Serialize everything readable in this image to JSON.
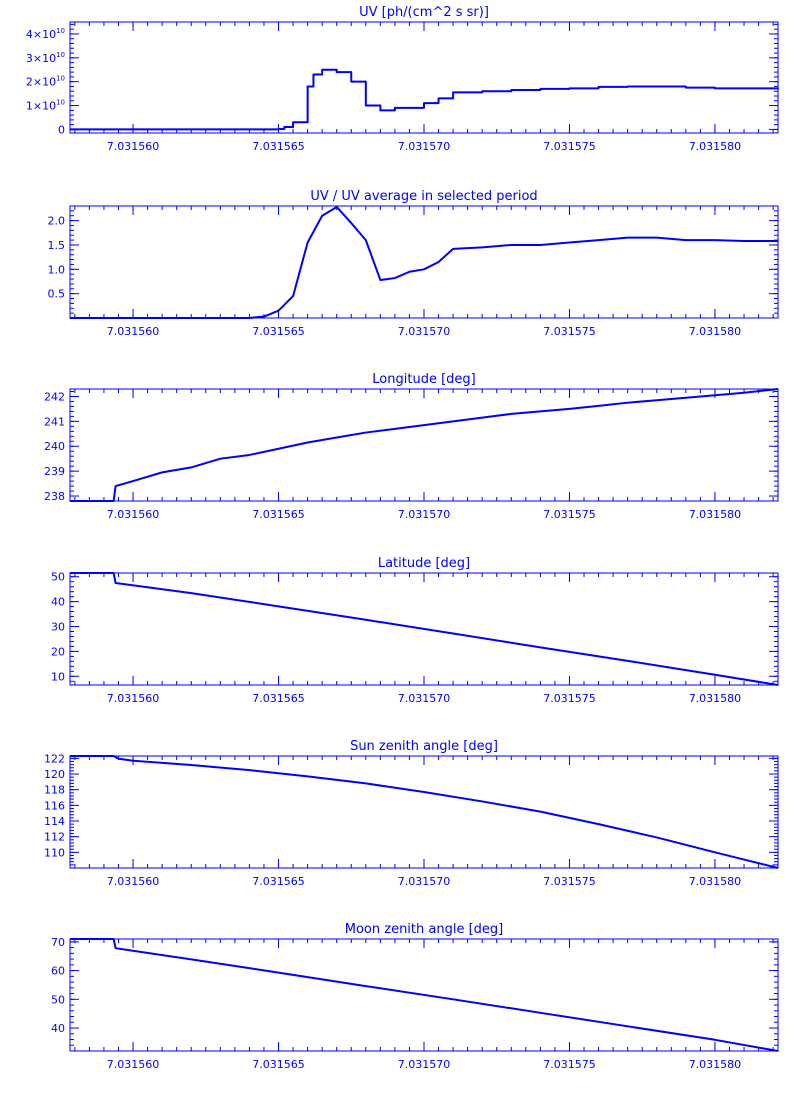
{
  "chart_data": [
    {
      "type": "line",
      "title": "UV [ph/(cm^2 s sr)]",
      "xlabel": "",
      "ylabel": "",
      "color": "#0000ff",
      "xlim": [
        7.031557833,
        7.031582167
      ],
      "ylim": [
        -1500000000.0,
        45000000000.0
      ],
      "xticks": [
        7.03156,
        7.031565,
        7.03157,
        7.031575,
        7.03158
      ],
      "xtick_labels": [
        "7.031560",
        "7.031565",
        "7.031570",
        "7.031575",
        "7.031580"
      ],
      "yticks": [
        0,
        10000000000.0,
        20000000000.0,
        30000000000.0,
        40000000000.0
      ],
      "ytick_labels": [
        {
          "mant": "0",
          "exp": ""
        },
        {
          "mant": "1×10",
          "exp": "10"
        },
        {
          "mant": "2×10",
          "exp": "10"
        },
        {
          "mant": "3×10",
          "exp": "10"
        },
        {
          "mant": "4×10",
          "exp": "10"
        }
      ],
      "step": true,
      "x": [
        7.031557833,
        7.031564,
        7.0315645,
        7.031565,
        7.0315652,
        7.0315655,
        7.031566,
        7.0315662,
        7.0315665,
        7.031567,
        7.0315675,
        7.031568,
        7.0315685,
        7.031569,
        7.03157,
        7.0315705,
        7.031571,
        7.031572,
        7.031573,
        7.031574,
        7.031575,
        7.031576,
        7.031577,
        7.031578,
        7.031579,
        7.03158,
        7.031581,
        7.031582167
      ],
      "y": [
        0,
        0,
        0,
        200000000.0,
        1000000000.0,
        3000000000.0,
        18000000000.0,
        23000000000.0,
        25000000000.0,
        24000000000.0,
        20000000000.0,
        10000000000.0,
        8000000000.0,
        9000000000.0,
        11000000000.0,
        13000000000.0,
        15500000000.0,
        16000000000.0,
        16500000000.0,
        17000000000.0,
        17200000000.0,
        17800000000.0,
        18000000000.0,
        18000000000.0,
        17500000000.0,
        17200000000.0,
        17200000000.0,
        17300000000.0
      ]
    },
    {
      "type": "line",
      "title": "UV / UV average in selected period",
      "xlabel": "",
      "ylabel": "",
      "color": "#0000ff",
      "xlim": [
        7.031557833,
        7.031582167
      ],
      "ylim": [
        0,
        2.3
      ],
      "xticks": [
        7.03156,
        7.031565,
        7.03157,
        7.031575,
        7.03158
      ],
      "xtick_labels": [
        "7.031560",
        "7.031565",
        "7.031570",
        "7.031575",
        "7.031580"
      ],
      "yticks": [
        0.5,
        1.0,
        1.5,
        2.0
      ],
      "ytick_labels": [
        {
          "mant": "0.5",
          "exp": ""
        },
        {
          "mant": "1.0",
          "exp": ""
        },
        {
          "mant": "1.5",
          "exp": ""
        },
        {
          "mant": "2.0",
          "exp": ""
        }
      ],
      "step": false,
      "x": [
        7.031557833,
        7.031564,
        7.0315645,
        7.031565,
        7.0315655,
        7.031566,
        7.0315665,
        7.031567,
        7.0315675,
        7.031568,
        7.0315685,
        7.031569,
        7.0315695,
        7.03157,
        7.0315705,
        7.031571,
        7.031572,
        7.031573,
        7.031574,
        7.031575,
        7.031576,
        7.031577,
        7.031578,
        7.031579,
        7.03158,
        7.031581,
        7.031582167
      ],
      "y": [
        0.0,
        0.0,
        0.03,
        0.15,
        0.45,
        1.55,
        2.1,
        2.28,
        1.95,
        1.6,
        0.78,
        0.82,
        0.95,
        1.0,
        1.15,
        1.42,
        1.45,
        1.5,
        1.5,
        1.55,
        1.6,
        1.65,
        1.65,
        1.6,
        1.6,
        1.58,
        1.58
      ]
    },
    {
      "type": "line",
      "title": "Longitude [deg]",
      "xlabel": "",
      "ylabel": "",
      "color": "#0000ff",
      "xlim": [
        7.031557833,
        7.031582167
      ],
      "ylim": [
        237.8,
        242.3
      ],
      "xticks": [
        7.03156,
        7.031565,
        7.03157,
        7.031575,
        7.03158
      ],
      "xtick_labels": [
        "7.031560",
        "7.031565",
        "7.031570",
        "7.031575",
        "7.031580"
      ],
      "yticks": [
        238,
        239,
        240,
        241,
        242
      ],
      "ytick_labels": [
        {
          "mant": "238",
          "exp": ""
        },
        {
          "mant": "239",
          "exp": ""
        },
        {
          "mant": "240",
          "exp": ""
        },
        {
          "mant": "241",
          "exp": ""
        },
        {
          "mant": "242",
          "exp": ""
        }
      ],
      "step": false,
      "x": [
        7.031557833,
        7.031559333,
        7.0315594,
        7.03156,
        7.031561,
        7.031562,
        7.031563,
        7.031564,
        7.031565,
        7.031566,
        7.031567,
        7.031568,
        7.031569,
        7.03157,
        7.031571,
        7.031572,
        7.031573,
        7.031574,
        7.031575,
        7.031576,
        7.031577,
        7.031578,
        7.031579,
        7.03158,
        7.031581,
        7.031582167
      ],
      "y": [
        237.8,
        237.8,
        238.4,
        238.6,
        238.95,
        239.15,
        239.5,
        239.65,
        239.9,
        240.15,
        240.35,
        240.55,
        240.7,
        240.85,
        241.0,
        241.15,
        241.3,
        241.4,
        241.5,
        241.62,
        241.75,
        241.85,
        241.95,
        242.05,
        242.15,
        242.3
      ]
    },
    {
      "type": "line",
      "title": "Latitude [deg]",
      "xlabel": "",
      "ylabel": "",
      "color": "#0000ff",
      "xlim": [
        7.031557833,
        7.031582167
      ],
      "ylim": [
        6.5,
        51.5
      ],
      "xticks": [
        7.03156,
        7.031565,
        7.03157,
        7.031575,
        7.03158
      ],
      "xtick_labels": [
        "7.031560",
        "7.031565",
        "7.031570",
        "7.031575",
        "7.031580"
      ],
      "yticks": [
        10,
        20,
        30,
        40,
        50
      ],
      "ytick_labels": [
        {
          "mant": "10",
          "exp": ""
        },
        {
          "mant": "20",
          "exp": ""
        },
        {
          "mant": "30",
          "exp": ""
        },
        {
          "mant": "40",
          "exp": ""
        },
        {
          "mant": "50",
          "exp": ""
        }
      ],
      "step": false,
      "x": [
        7.031557833,
        7.031559333,
        7.0315594,
        7.031562,
        7.031565,
        7.031568,
        7.031571,
        7.031574,
        7.031577,
        7.03158,
        7.031582167
      ],
      "y": [
        51.5,
        51.5,
        47.5,
        43.4,
        38.1,
        32.7,
        27.2,
        21.6,
        16.2,
        10.6,
        6.5
      ]
    },
    {
      "type": "line",
      "title": "Sun zenith angle [deg]",
      "xlabel": "",
      "ylabel": "",
      "color": "#0000ff",
      "xlim": [
        7.031557833,
        7.031582167
      ],
      "ylim": [
        108.0,
        122.3
      ],
      "xticks": [
        7.03156,
        7.031565,
        7.03157,
        7.031575,
        7.03158
      ],
      "xtick_labels": [
        "7.031560",
        "7.031565",
        "7.031570",
        "7.031575",
        "7.031580"
      ],
      "yticks": [
        110,
        112,
        114,
        116,
        118,
        120,
        122
      ],
      "ytick_labels": [
        {
          "mant": "110",
          "exp": ""
        },
        {
          "mant": "112",
          "exp": ""
        },
        {
          "mant": "114",
          "exp": ""
        },
        {
          "mant": "116",
          "exp": ""
        },
        {
          "mant": "118",
          "exp": ""
        },
        {
          "mant": "120",
          "exp": ""
        },
        {
          "mant": "122",
          "exp": ""
        }
      ],
      "step": false,
      "x": [
        7.031557833,
        7.031559333,
        7.0315595,
        7.03156,
        7.031562,
        7.031564,
        7.031566,
        7.031568,
        7.03157,
        7.031572,
        7.031574,
        7.031576,
        7.031578,
        7.03158,
        7.031582167
      ],
      "y": [
        122.3,
        122.3,
        121.95,
        121.7,
        121.15,
        120.5,
        119.7,
        118.8,
        117.7,
        116.5,
        115.2,
        113.6,
        111.9,
        110.0,
        108.0
      ]
    },
    {
      "type": "line",
      "title": "Moon zenith angle [deg]",
      "xlabel": "",
      "ylabel": "",
      "color": "#0000ff",
      "xlim": [
        7.031557833,
        7.031582167
      ],
      "ylim": [
        32.0,
        71.0
      ],
      "xticks": [
        7.03156,
        7.031565,
        7.03157,
        7.031575,
        7.03158
      ],
      "xtick_labels": [
        "7.031560",
        "7.031565",
        "7.031570",
        "7.031575",
        "7.031580"
      ],
      "yticks": [
        40,
        50,
        60,
        70
      ],
      "ytick_labels": [
        {
          "mant": "40",
          "exp": ""
        },
        {
          "mant": "50",
          "exp": ""
        },
        {
          "mant": "60",
          "exp": ""
        },
        {
          "mant": "70",
          "exp": ""
        }
      ],
      "step": false,
      "x": [
        7.031557833,
        7.031559333,
        7.0315594,
        7.031562,
        7.031565,
        7.031568,
        7.031571,
        7.031574,
        7.031577,
        7.03158,
        7.031582167
      ],
      "y": [
        71.0,
        71.0,
        67.8,
        63.9,
        59.3,
        54.6,
        50.0,
        45.3,
        40.6,
        35.9,
        32.0
      ]
    }
  ]
}
